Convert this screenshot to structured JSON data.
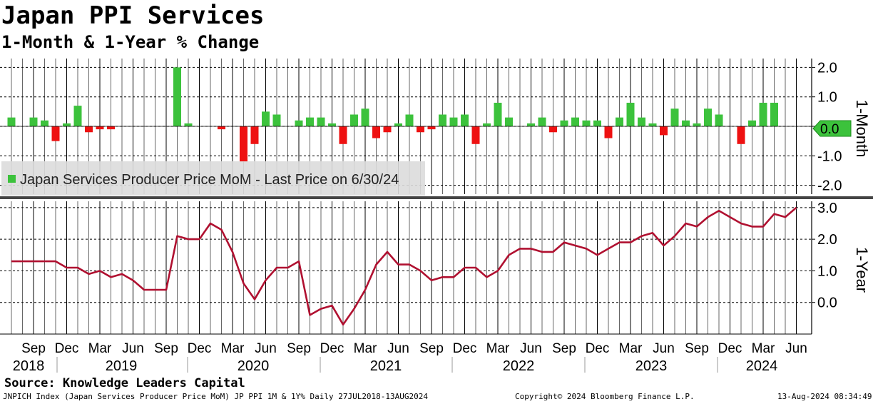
{
  "header": {
    "title": "Japan PPI Services",
    "subtitle": "1-Month & 1-Year % Change"
  },
  "footer": {
    "source": "Source: Knowledge Leaders Capital",
    "index_info": "JNPICH Index (Japan Services Producer Price MoM) JP PPI 1M & 1Y%  Daily 27JUL2018-13AUG2024",
    "copyright": "Copyright© 2024 Bloomberg Finance L.P.",
    "timestamp": "13-Aug-2024 08:34:49"
  },
  "colors": {
    "bar_positive": "#3cc23c",
    "bar_negative": "#ee1111",
    "line": "#b01030",
    "last_price_tag": "#3cc23c"
  },
  "chart_data": [
    {
      "type": "bar",
      "legend": "Japan Services Producer Price MoM - Last Price on 6/30/24",
      "legend_position": "bottom-left",
      "ylabel": "1-Month",
      "ylim": [
        -2.3,
        2.3
      ],
      "yticks": [
        "2.0",
        "1.0",
        "0.0",
        "-1.0",
        "-2.0"
      ],
      "grid": true,
      "last_price_label": "0.0",
      "x": [
        "2018-07",
        "2018-08",
        "2018-09",
        "2018-10",
        "2018-11",
        "2018-12",
        "2019-01",
        "2019-02",
        "2019-03",
        "2019-04",
        "2019-05",
        "2019-06",
        "2019-07",
        "2019-08",
        "2019-09",
        "2019-10",
        "2019-11",
        "2019-12",
        "2020-01",
        "2020-02",
        "2020-03",
        "2020-04",
        "2020-05",
        "2020-06",
        "2020-07",
        "2020-08",
        "2020-09",
        "2020-10",
        "2020-11",
        "2020-12",
        "2021-01",
        "2021-02",
        "2021-03",
        "2021-04",
        "2021-05",
        "2021-06",
        "2021-07",
        "2021-08",
        "2021-09",
        "2021-10",
        "2021-11",
        "2021-12",
        "2022-01",
        "2022-02",
        "2022-03",
        "2022-04",
        "2022-05",
        "2022-06",
        "2022-07",
        "2022-08",
        "2022-09",
        "2022-10",
        "2022-11",
        "2022-12",
        "2023-01",
        "2023-02",
        "2023-03",
        "2023-04",
        "2023-05",
        "2023-06",
        "2023-07",
        "2023-08",
        "2023-09",
        "2023-10",
        "2023-11",
        "2023-12",
        "2024-01",
        "2024-02",
        "2024-03",
        "2024-04",
        "2024-05",
        "2024-06"
      ],
      "values": [
        0.3,
        0.0,
        0.3,
        0.2,
        -0.5,
        0.1,
        0.7,
        -0.2,
        -0.1,
        -0.1,
        0.0,
        0.0,
        0.0,
        0.0,
        0.0,
        2.0,
        0.1,
        0.0,
        0.0,
        -0.1,
        0.0,
        -1.2,
        -0.6,
        0.5,
        0.4,
        0.0,
        0.2,
        0.3,
        0.3,
        0.1,
        -0.6,
        0.4,
        0.6,
        -0.4,
        -0.2,
        0.1,
        0.4,
        -0.2,
        -0.1,
        0.4,
        0.3,
        0.4,
        -0.6,
        0.1,
        0.8,
        0.3,
        0.0,
        0.1,
        0.3,
        -0.2,
        0.2,
        0.3,
        0.2,
        0.2,
        -0.4,
        0.3,
        0.8,
        0.3,
        0.1,
        -0.3,
        0.6,
        0.2,
        0.1,
        0.6,
        0.4,
        0.0,
        -0.6,
        0.2,
        0.8,
        0.8,
        0.0,
        0.0
      ]
    },
    {
      "type": "line",
      "ylabel": "1-Year",
      "ylim": [
        -1.0,
        3.2
      ],
      "yticks": [
        "3.0",
        "2.0",
        "1.0",
        "0.0"
      ],
      "grid": true,
      "x": [
        "2018-07",
        "2018-08",
        "2018-09",
        "2018-10",
        "2018-11",
        "2018-12",
        "2019-01",
        "2019-02",
        "2019-03",
        "2019-04",
        "2019-05",
        "2019-06",
        "2019-07",
        "2019-08",
        "2019-09",
        "2019-10",
        "2019-11",
        "2019-12",
        "2020-01",
        "2020-02",
        "2020-03",
        "2020-04",
        "2020-05",
        "2020-06",
        "2020-07",
        "2020-08",
        "2020-09",
        "2020-10",
        "2020-11",
        "2020-12",
        "2021-01",
        "2021-02",
        "2021-03",
        "2021-04",
        "2021-05",
        "2021-06",
        "2021-07",
        "2021-08",
        "2021-09",
        "2021-10",
        "2021-11",
        "2021-12",
        "2022-01",
        "2022-02",
        "2022-03",
        "2022-04",
        "2022-05",
        "2022-06",
        "2022-07",
        "2022-08",
        "2022-09",
        "2022-10",
        "2022-11",
        "2022-12",
        "2023-01",
        "2023-02",
        "2023-03",
        "2023-04",
        "2023-05",
        "2023-06",
        "2023-07",
        "2023-08",
        "2023-09",
        "2023-10",
        "2023-11",
        "2023-12",
        "2024-01",
        "2024-02",
        "2024-03",
        "2024-04",
        "2024-05",
        "2024-06"
      ],
      "values": [
        1.3,
        1.3,
        1.3,
        1.3,
        1.3,
        1.1,
        1.1,
        0.9,
        1.0,
        0.8,
        0.9,
        0.7,
        0.4,
        0.4,
        0.4,
        2.1,
        2.0,
        2.0,
        2.5,
        2.3,
        1.6,
        0.6,
        0.1,
        0.7,
        1.1,
        1.1,
        1.3,
        -0.4,
        -0.2,
        -0.1,
        -0.7,
        -0.2,
        0.4,
        1.2,
        1.6,
        1.2,
        1.2,
        1.0,
        0.7,
        0.8,
        0.8,
        1.1,
        1.1,
        0.8,
        1.0,
        1.5,
        1.7,
        1.7,
        1.6,
        1.6,
        1.9,
        1.8,
        1.7,
        1.5,
        1.7,
        1.9,
        1.9,
        2.1,
        2.2,
        1.8,
        2.1,
        2.5,
        2.4,
        2.7,
        2.9,
        2.7,
        2.5,
        2.4,
        2.4,
        2.8,
        2.7,
        3.0
      ]
    }
  ],
  "x_axis": {
    "month_labels": [
      {
        "date": "2018-09",
        "label": "Sep"
      },
      {
        "date": "2018-12",
        "label": "Dec"
      },
      {
        "date": "2019-03",
        "label": "Mar"
      },
      {
        "date": "2019-06",
        "label": "Jun"
      },
      {
        "date": "2019-09",
        "label": "Sep"
      },
      {
        "date": "2019-12",
        "label": "Dec"
      },
      {
        "date": "2020-03",
        "label": "Mar"
      },
      {
        "date": "2020-06",
        "label": "Jun"
      },
      {
        "date": "2020-09",
        "label": "Sep"
      },
      {
        "date": "2020-12",
        "label": "Dec"
      },
      {
        "date": "2021-03",
        "label": "Mar"
      },
      {
        "date": "2021-06",
        "label": "Jun"
      },
      {
        "date": "2021-09",
        "label": "Sep"
      },
      {
        "date": "2021-12",
        "label": "Dec"
      },
      {
        "date": "2022-03",
        "label": "Mar"
      },
      {
        "date": "2022-06",
        "label": "Jun"
      },
      {
        "date": "2022-09",
        "label": "Sep"
      },
      {
        "date": "2022-12",
        "label": "Dec"
      },
      {
        "date": "2023-03",
        "label": "Mar"
      },
      {
        "date": "2023-06",
        "label": "Jun"
      },
      {
        "date": "2023-09",
        "label": "Sep"
      },
      {
        "date": "2023-12",
        "label": "Dec"
      },
      {
        "date": "2024-03",
        "label": "Mar"
      },
      {
        "date": "2024-06",
        "label": "Jun"
      }
    ],
    "year_labels": [
      "2018",
      "2019",
      "2020",
      "2021",
      "2022",
      "2023",
      "2024"
    ]
  }
}
